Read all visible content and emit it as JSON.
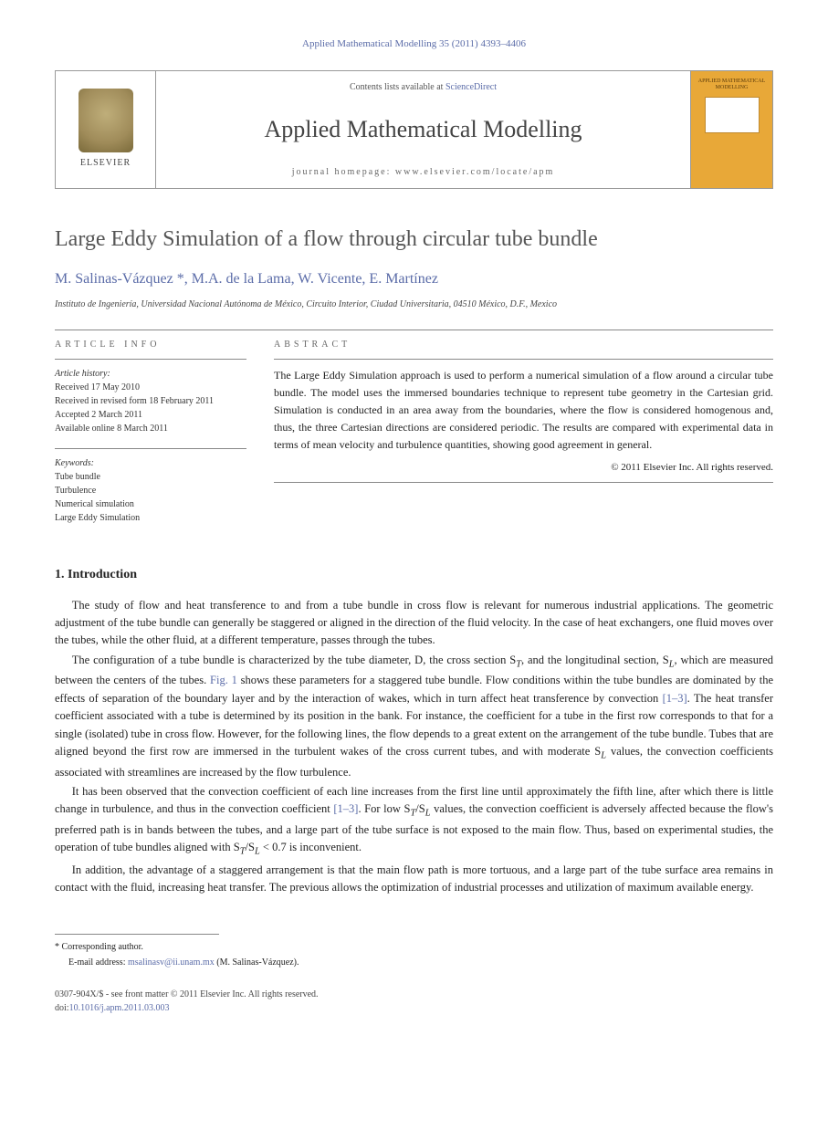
{
  "journal_ref": "Applied Mathematical Modelling 35 (2011) 4393–4406",
  "header": {
    "contents_prefix": "Contents lists available at ",
    "contents_link": "ScienceDirect",
    "journal_name": "Applied Mathematical Modelling",
    "homepage_prefix": "journal homepage: ",
    "homepage_url": "www.elsevier.com/locate/apm",
    "elsevier_label": "ELSEVIER",
    "cover_text": "APPLIED MATHEMATICAL MODELLING"
  },
  "title": "Large Eddy Simulation of a flow through circular tube bundle",
  "authors": "M. Salinas-Vázquez *, M.A. de la Lama, W. Vicente, E. Martínez",
  "affiliation": "Instituto de Ingeniería, Universidad Nacional Autónoma de México, Circuito Interior, Ciudad Universitaria, 04510 México, D.F., Mexico",
  "info_label": "ARTICLE INFO",
  "abstract_label": "ABSTRACT",
  "history": {
    "heading": "Article history:",
    "received": "Received 17 May 2010",
    "revised": "Received in revised form 18 February 2011",
    "accepted": "Accepted 2 March 2011",
    "online": "Available online 8 March 2011"
  },
  "keywords": {
    "heading": "Keywords:",
    "items": [
      "Tube bundle",
      "Turbulence",
      "Numerical simulation",
      "Large Eddy Simulation"
    ]
  },
  "abstract": "The Large Eddy Simulation approach is used to perform a numerical simulation of a flow around a circular tube bundle. The model uses the immersed boundaries technique to represent tube geometry in the Cartesian grid. Simulation is conducted in an area away from the boundaries, where the flow is considered homogenous and, thus, the three Cartesian directions are considered periodic. The results are compared with experimental data in terms of mean velocity and turbulence quantities, showing good agreement in general.",
  "copyright": "© 2011 Elsevier Inc. All rights reserved.",
  "intro_heading": "1. Introduction",
  "paragraphs": {
    "p1": "The study of flow and heat transference to and from a tube bundle in cross flow is relevant for numerous industrial applications. The geometric adjustment of the tube bundle can generally be staggered or aligned in the direction of the fluid velocity. In the case of heat exchangers, one fluid moves over the tubes, while the other fluid, at a different temperature, passes through the tubes.",
    "p2_a": "The configuration of a tube bundle is characterized by the tube diameter, D, the cross section S",
    "p2_b": ", and the longitudinal section, S",
    "p2_c": ", which are measured between the centers of the tubes. ",
    "p2_fig": "Fig. 1",
    "p2_d": " shows these parameters for a staggered tube bundle. Flow conditions within the tube bundles are dominated by the effects of separation of the boundary layer and by the interaction of wakes, which in turn affect heat transference by convection ",
    "p2_ref1": "[1–3]",
    "p2_e": ". The heat transfer coefficient associated with a tube is determined by its position in the bank. For instance, the coefficient for a tube in the first row corresponds to that for a single (isolated) tube in cross flow. However, for the following lines, the flow depends to a great extent on the arrangement of the tube bundle. Tubes that are aligned beyond the first row are immersed in the turbulent wakes of the cross current tubes, and with moderate S",
    "p2_f": " values, the convection coefficients associated with streamlines are increased by the flow turbulence.",
    "p3_a": "It has been observed that the convection coefficient of each line increases from the first line until approximately the fifth line, after which there is little change in turbulence, and thus in the convection coefficient ",
    "p3_ref": "[1–3]",
    "p3_b": ". For low S",
    "p3_c": "/S",
    "p3_d": " values, the convection coefficient is adversely affected because the flow's preferred path is in bands between the tubes, and a large part of the tube surface is not exposed to the main flow. Thus, based on experimental studies, the operation of tube bundles aligned with S",
    "p3_e": "/S",
    "p3_f": " < 0.7 is inconvenient.",
    "p4": "In addition, the advantage of a staggered arrangement is that the main flow path is more tortuous, and a large part of the tube surface area remains in contact with the fluid, increasing heat transfer. The previous allows the optimization of industrial processes and utilization of maximum available energy."
  },
  "sub": {
    "T": "T",
    "L": "L"
  },
  "footer": {
    "corr": "* Corresponding author.",
    "email_label": "E-mail address: ",
    "email": "msalinasv@ii.unam.mx",
    "email_suffix": " (M. Salinas-Vázquez).",
    "issn_line": "0307-904X/$ - see front matter © 2011 Elsevier Inc. All rights reserved.",
    "doi_label": "doi:",
    "doi": "10.1016/j.apm.2011.03.003"
  }
}
